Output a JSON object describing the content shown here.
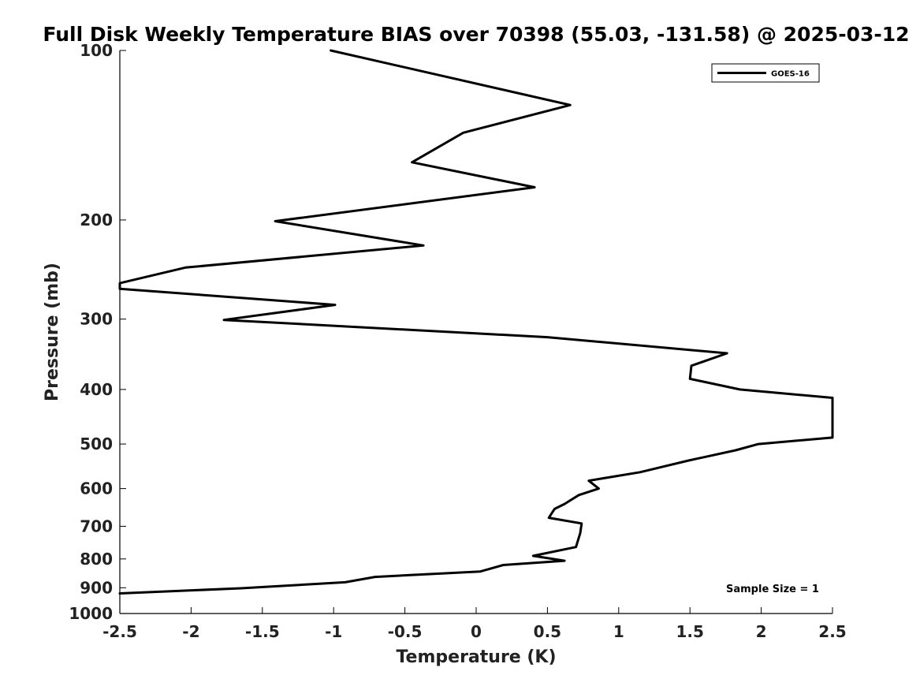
{
  "chart_data": {
    "type": "line",
    "title": "Full Disk Weekly Temperature BIAS over 70398 (55.03, -131.58) @ 2025-03-12",
    "xlabel": "Temperature (K)",
    "ylabel": "Pressure (mb)",
    "xlim": [
      -2.5,
      2.5
    ],
    "ylim": [
      100,
      1000
    ],
    "y_scale": "log",
    "y_reversed": true,
    "grid": false,
    "legend_position": "top-right",
    "x_ticks": [
      -2.5,
      -2,
      -1.5,
      -1,
      -0.5,
      0,
      0.5,
      1,
      1.5,
      2,
      2.5
    ],
    "x_tick_labels": [
      "-2.5",
      "-2",
      "-1.5",
      "-1",
      "-0.5",
      "0",
      "0.5",
      "1",
      "1.5",
      "2",
      "2.5"
    ],
    "y_ticks": [
      100,
      200,
      300,
      400,
      500,
      600,
      700,
      800,
      900,
      1000
    ],
    "y_tick_labels": [
      "100",
      "200",
      "300",
      "400",
      "500",
      "600",
      "700",
      "800",
      "900",
      "1000"
    ],
    "series": [
      {
        "name": "GOES-16",
        "color": "#000000",
        "points": [
          [
            -1.02,
            100
          ],
          [
            0.66,
            125
          ],
          [
            -0.09,
            140
          ],
          [
            -0.45,
            158
          ],
          [
            0.41,
            175
          ],
          [
            -1.41,
            201
          ],
          [
            -0.37,
            222
          ],
          [
            -2.04,
            243
          ],
          [
            -2.5,
            259
          ],
          [
            -2.5,
            265
          ],
          [
            -0.99,
            283
          ],
          [
            -1.77,
            301
          ],
          [
            0.5,
            323
          ],
          [
            1.76,
            345
          ],
          [
            1.51,
            363
          ],
          [
            1.5,
            383
          ],
          [
            1.85,
            400
          ],
          [
            2.5,
            414
          ],
          [
            2.5,
            487
          ],
          [
            1.98,
            500
          ],
          [
            1.82,
            513
          ],
          [
            1.49,
            535
          ],
          [
            1.15,
            561
          ],
          [
            0.79,
            581
          ],
          [
            0.86,
            600
          ],
          [
            0.72,
            616
          ],
          [
            0.62,
            639
          ],
          [
            0.55,
            652
          ],
          [
            0.51,
            676
          ],
          [
            0.74,
            692
          ],
          [
            0.73,
            720
          ],
          [
            0.7,
            762
          ],
          [
            0.4,
            790
          ],
          [
            0.62,
            806
          ],
          [
            0.19,
            820
          ],
          [
            0.03,
            842
          ],
          [
            -0.71,
            861
          ],
          [
            -0.92,
            880
          ],
          [
            -1.65,
            902
          ],
          [
            -2.5,
            921
          ]
        ]
      }
    ],
    "annotation": "Sample Size = 1"
  }
}
